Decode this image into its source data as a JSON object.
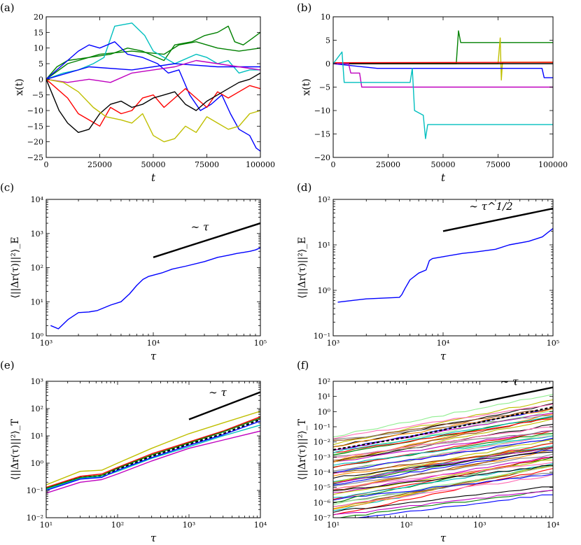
{
  "figure": {
    "panel_labels": [
      "(a)",
      "(b)",
      "(c)",
      "(d)",
      "(e)",
      "(f)"
    ]
  },
  "chart_data": [
    {
      "id": "a",
      "type": "line",
      "title": "",
      "xlabel": "t",
      "ylabel": "x(t)",
      "xlim": [
        0,
        100000
      ],
      "ylim": [
        -25,
        20
      ],
      "xscale": "linear",
      "yscale": "linear",
      "xticks": [
        "0",
        "25000",
        "50000",
        "75000",
        "100000"
      ],
      "yticks": [
        "−25",
        "−20",
        "−15",
        "−10",
        "−5",
        "0",
        "5",
        "10",
        "15",
        "20"
      ],
      "series": [
        {
          "name": "green",
          "color": "#008000",
          "x": [
            0,
            5000,
            10000,
            20000,
            30000,
            38000,
            45000,
            55000,
            60000,
            68000,
            74000,
            80000,
            85000,
            88000,
            92000,
            96000,
            100000
          ],
          "y": [
            0,
            4,
            6,
            7,
            8,
            10,
            9,
            6,
            11,
            12,
            14,
            15,
            17,
            12,
            11,
            13,
            15
          ]
        },
        {
          "name": "green2",
          "color": "#008000",
          "x": [
            0,
            10000,
            25000,
            40000,
            55000,
            62000,
            70000,
            80000,
            90000,
            100000
          ],
          "y": [
            0,
            5,
            8,
            9,
            8,
            11,
            12,
            10,
            9,
            10
          ]
        },
        {
          "name": "cyan",
          "color": "#00bfbf",
          "x": [
            0,
            8000,
            15000,
            22000,
            27000,
            32000,
            40000,
            46000,
            50000,
            60000,
            70000,
            75000,
            80000,
            85000,
            90000,
            95000,
            100000
          ],
          "y": [
            0,
            2,
            3,
            5,
            7,
            17,
            18,
            14,
            9,
            5,
            8,
            7,
            5,
            6,
            2,
            3,
            3
          ]
        },
        {
          "name": "blue",
          "color": "#0000ff",
          "x": [
            0,
            5000,
            10000,
            15000,
            20000,
            25000,
            32000,
            38000,
            45000,
            52000,
            57000,
            62000,
            67000,
            72000,
            77000,
            82000,
            86000,
            90000,
            95000,
            98000,
            100000
          ],
          "y": [
            0,
            3,
            6,
            9,
            11,
            10,
            12,
            8,
            7,
            5,
            2,
            3,
            -5,
            -10,
            -8,
            -5,
            -11,
            -16,
            -18,
            -22,
            -23
          ]
        },
        {
          "name": "blue2",
          "color": "#0000ff",
          "x": [
            0,
            20000,
            40000,
            60000,
            80000,
            100000
          ],
          "y": [
            0,
            4,
            3,
            5,
            4,
            4
          ]
        },
        {
          "name": "magenta",
          "color": "#bf00bf",
          "x": [
            0,
            10000,
            20000,
            30000,
            40000,
            50000,
            60000,
            70000,
            80000,
            90000,
            100000
          ],
          "y": [
            0,
            -1,
            0,
            -1,
            2,
            3,
            4,
            6,
            5,
            4,
            3
          ]
        },
        {
          "name": "red",
          "color": "#ff0000",
          "x": [
            0,
            5000,
            10000,
            15000,
            20000,
            25000,
            30000,
            35000,
            40000,
            45000,
            50000,
            55000,
            60000,
            65000,
            70000,
            75000,
            80000,
            85000,
            90000,
            95000,
            100000
          ],
          "y": [
            0,
            -3,
            -6,
            -11,
            -13,
            -15,
            -9,
            -11,
            -10,
            -6,
            -5,
            -9,
            -6,
            -3,
            -6,
            -9,
            -4,
            -6,
            -4,
            -2,
            -3
          ]
        },
        {
          "name": "black",
          "color": "#000000",
          "x": [
            0,
            3000,
            6000,
            10000,
            15000,
            20000,
            25000,
            30000,
            35000,
            40000,
            45000,
            50000,
            55000,
            60000,
            65000,
            70000,
            75000,
            80000,
            85000,
            90000,
            95000,
            100000
          ],
          "y": [
            0,
            -5,
            -10,
            -14,
            -17,
            -16,
            -11,
            -8,
            -7,
            -9,
            -8,
            -6,
            -5,
            -4,
            -8,
            -10,
            -7,
            -5,
            -3,
            -1,
            0,
            2
          ]
        },
        {
          "name": "yellow",
          "color": "#bfbf00",
          "x": [
            0,
            8000,
            15000,
            22000,
            28000,
            35000,
            40000,
            45000,
            50000,
            55000,
            60000,
            65000,
            70000,
            75000,
            80000,
            85000,
            90000,
            95000,
            100000
          ],
          "y": [
            0,
            -1,
            -4,
            -9,
            -12,
            -13,
            -14,
            -11,
            -18,
            -20,
            -19,
            -15,
            -17,
            -12,
            -14,
            -16,
            -15,
            -11,
            -10
          ]
        }
      ]
    },
    {
      "id": "b",
      "type": "line",
      "xlabel": "t",
      "ylabel": "x(t)",
      "xlim": [
        0,
        100000
      ],
      "ylim": [
        -20,
        10
      ],
      "xscale": "linear",
      "yscale": "linear",
      "xticks": [
        "0",
        "25000",
        "50000",
        "75000",
        "100000"
      ],
      "yticks": [
        "−20",
        "−15",
        "−10",
        "−5",
        "0",
        "5",
        "10"
      ],
      "series": [
        {
          "name": "green",
          "color": "#008000",
          "x": [
            0,
            50000,
            56000,
            57000,
            58000,
            100000
          ],
          "y": [
            0,
            0,
            0,
            7,
            4.5,
            4.5
          ]
        },
        {
          "name": "yellow",
          "color": "#bfbf00",
          "x": [
            0,
            75000,
            76000,
            76500,
            77000,
            100000
          ],
          "y": [
            0,
            0,
            5.5,
            -3.5,
            0.3,
            0.3
          ]
        },
        {
          "name": "red",
          "color": "#ff0000",
          "x": [
            0,
            100000
          ],
          "y": [
            0.2,
            0.3
          ]
        },
        {
          "name": "black",
          "color": "#000000",
          "x": [
            0,
            100000
          ],
          "y": [
            0,
            0
          ]
        },
        {
          "name": "blue",
          "color": "#0000ff",
          "x": [
            0,
            20000,
            45000,
            56000,
            70000,
            95000,
            96000,
            100000
          ],
          "y": [
            0,
            -1,
            -1,
            -1,
            -1,
            -1,
            -3,
            -3
          ]
        },
        {
          "name": "magenta",
          "color": "#bf00bf",
          "x": [
            0,
            7000,
            8000,
            12000,
            13000,
            50000,
            100000
          ],
          "y": [
            0,
            0,
            -2,
            -2,
            -5,
            -5,
            -5
          ]
        },
        {
          "name": "cyan",
          "color": "#00bfbf",
          "x": [
            0,
            4000,
            5000,
            15000,
            35000,
            36000,
            37000,
            41000,
            42000,
            43000,
            100000
          ],
          "y": [
            0,
            2.5,
            -4,
            -4,
            -4,
            -1,
            -10,
            -11,
            -16,
            -13,
            -13
          ]
        }
      ]
    },
    {
      "id": "c",
      "type": "line",
      "xlabel": "τ",
      "ylabel": "⟨||Δr(τ)||²⟩_E",
      "xlim": [
        1000,
        100000
      ],
      "ylim": [
        1,
        10000
      ],
      "xscale": "log",
      "yscale": "log",
      "xticks": [
        "10³",
        "10⁴",
        "10⁵"
      ],
      "yticks": [
        "10⁰",
        "10¹",
        "10²",
        "10³",
        "10⁴"
      ],
      "annotation": "∼ τ",
      "reference_line": {
        "x": [
          10000,
          100000
        ],
        "y": [
          200,
          2000
        ]
      },
      "series": [
        {
          "name": "msd",
          "color": "#0000ff",
          "x": [
            1100,
            1300,
            1600,
            2000,
            2500,
            3000,
            4000,
            5000,
            6000,
            7000,
            8000,
            9000,
            10000,
            12000,
            15000,
            20000,
            30000,
            40000,
            50000,
            60000,
            70000,
            80000,
            90000,
            100000
          ],
          "y": [
            2,
            1.6,
            3,
            4.8,
            5,
            5.5,
            8,
            10,
            17,
            30,
            45,
            55,
            60,
            70,
            90,
            110,
            150,
            200,
            230,
            260,
            280,
            300,
            330,
            380
          ]
        }
      ]
    },
    {
      "id": "d",
      "type": "line",
      "xlabel": "τ",
      "ylabel": "⟨||Δr(τ)||²⟩_E",
      "xlim": [
        1000,
        100000
      ],
      "ylim": [
        0.1,
        100
      ],
      "xscale": "log",
      "yscale": "log",
      "xticks": [
        "10³",
        "10⁴",
        "10⁵"
      ],
      "yticks": [
        "10⁻¹",
        "10⁰",
        "10¹",
        "10²"
      ],
      "annotation": "∼ τ^1/2",
      "reference_line": {
        "x": [
          10000,
          100000
        ],
        "y": [
          20,
          63
        ]
      },
      "series": [
        {
          "name": "msd",
          "color": "#0000ff",
          "x": [
            1100,
            1500,
            2000,
            3000,
            4000,
            4200,
            4500,
            5000,
            6000,
            7000,
            7500,
            8000,
            10000,
            15000,
            20000,
            30000,
            40000,
            60000,
            80000,
            100000
          ],
          "y": [
            0.55,
            0.6,
            0.65,
            0.68,
            0.7,
            0.8,
            1.1,
            1.7,
            2.4,
            2.8,
            4.5,
            5,
            5.5,
            6.5,
            7,
            8,
            10,
            12,
            15,
            23
          ]
        }
      ]
    },
    {
      "id": "e",
      "type": "line",
      "xlabel": "τ",
      "ylabel": "⟨||Δr(τ)||²⟩_T",
      "xlim": [
        10,
        10000
      ],
      "ylim": [
        0.01,
        1000
      ],
      "xscale": "log",
      "yscale": "log",
      "xticks": [
        "10¹",
        "10²",
        "10³",
        "10⁴"
      ],
      "yticks": [
        "10⁻²",
        "10⁻¹",
        "10⁰",
        "10¹",
        "10²",
        "10³"
      ],
      "annotation": "∼ τ",
      "reference_line": {
        "x": [
          1000,
          10000
        ],
        "y": [
          40,
          400
        ]
      },
      "series": [
        {
          "name": "mean",
          "color": "#000000",
          "dashed": true,
          "x": [
            10,
            30,
            60,
            100,
            300,
            1000,
            3000,
            10000
          ],
          "y": [
            0.12,
            0.3,
            0.35,
            0.6,
            1.8,
            5,
            12,
            40
          ]
        },
        {
          "name": "yellow",
          "color": "#bfbf00",
          "x": [
            10,
            30,
            60,
            100,
            300,
            1000,
            3000,
            10000
          ],
          "y": [
            0.16,
            0.5,
            0.55,
            1,
            3.5,
            12,
            30,
            80
          ]
        },
        {
          "name": "magenta",
          "color": "#bf00bf",
          "x": [
            10,
            30,
            60,
            100,
            300,
            1000,
            3000,
            10000
          ],
          "y": [
            0.08,
            0.2,
            0.25,
            0.4,
            1.2,
            3.5,
            7,
            15
          ]
        },
        {
          "name": "cyan",
          "color": "#00bfbf",
          "x": [
            10,
            30,
            60,
            100,
            300,
            1000,
            3000,
            10000
          ],
          "y": [
            0.11,
            0.28,
            0.32,
            0.5,
            1.5,
            4,
            10,
            25
          ]
        },
        {
          "name": "red",
          "color": "#ff0000",
          "x": [
            10,
            30,
            60,
            100,
            300,
            1000,
            3000,
            10000
          ],
          "y": [
            0.13,
            0.33,
            0.4,
            0.7,
            2.2,
            6,
            15,
            50
          ]
        },
        {
          "name": "green",
          "color": "#008000",
          "x": [
            10,
            30,
            60,
            100,
            300,
            1000,
            3000,
            10000
          ],
          "y": [
            0.12,
            0.3,
            0.36,
            0.65,
            2,
            5.5,
            14,
            45
          ]
        },
        {
          "name": "blue",
          "color": "#0000ff",
          "x": [
            10,
            30,
            60,
            100,
            300,
            1000,
            3000,
            10000
          ],
          "y": [
            0.1,
            0.26,
            0.3,
            0.55,
            1.6,
            4.5,
            11,
            35
          ]
        }
      ]
    },
    {
      "id": "f",
      "type": "line",
      "xlabel": "τ",
      "ylabel": "⟨||Δr(τ)||²⟩_T",
      "xlim": [
        10,
        10000
      ],
      "ylim": [
        1e-07,
        100
      ],
      "xscale": "log",
      "yscale": "log",
      "xticks": [
        "10¹",
        "10²",
        "10³",
        "10⁴"
      ],
      "yticks": [
        "10⁻⁷",
        "10⁻⁶",
        "10⁻⁵",
        "10⁻⁴",
        "10⁻³",
        "10⁻²",
        "10⁻¹",
        "10⁰",
        "10¹",
        "10²"
      ],
      "annotation": "∼ τ",
      "reference_line": {
        "x": [
          1000,
          10000
        ],
        "y": [
          4,
          40
        ]
      },
      "mean_line": {
        "x": [
          10,
          100,
          1000,
          10000
        ],
        "y": [
          0.003,
          0.02,
          0.2,
          2
        ]
      },
      "ensemble": {
        "count": 60,
        "start_log10_min": -7,
        "start_log10_max": -1.8,
        "end_log10_min": -6.3,
        "end_log10_max": 1.4,
        "colors": [
          "#0000ff",
          "#008000",
          "#ff0000",
          "#00bfbf",
          "#bf00bf",
          "#bfbf00",
          "#000000",
          "#ff8c00",
          "#8b4513",
          "#808080",
          "#ff69b4",
          "#90ee90"
        ]
      }
    }
  ]
}
